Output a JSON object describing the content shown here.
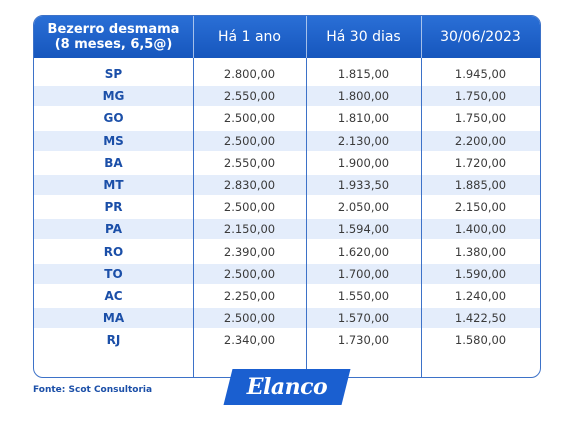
{
  "table": {
    "header": [
      [
        "Bezerro desmama",
        "(8 meses, 6,5@)"
      ],
      "Há 1 ano",
      "Há 30 dias",
      "30/06/2023"
    ],
    "rows": [
      [
        "SP",
        "2.800,00",
        "1.815,00",
        "1.945,00"
      ],
      [
        "MG",
        "2.550,00",
        "1.800,00",
        "1.750,00"
      ],
      [
        "GO",
        "2.500,00",
        "1.810,00",
        "1.750,00"
      ],
      [
        "MS",
        "2.500,00",
        "2.130,00",
        "2.200,00"
      ],
      [
        "BA",
        "2.550,00",
        "1.900,00",
        "1.720,00"
      ],
      [
        "MT",
        "2.830,00",
        "1.933,50",
        "1.885,00"
      ],
      [
        "PR",
        "2.500,00",
        "2.050,00",
        "2.150,00"
      ],
      [
        "PA",
        "2.150,00",
        "1.594,00",
        "1.400,00"
      ],
      [
        "RO",
        "2.390,00",
        "1.620,00",
        "1.380,00"
      ],
      [
        "TO",
        "2.500,00",
        "1.700,00",
        "1.590,00"
      ],
      [
        "AC",
        "2.250,00",
        "1.550,00",
        "1.240,00"
      ],
      [
        "MA",
        "2.500,00",
        "1.570,00",
        "1.422,50"
      ],
      [
        "RJ",
        "2.340,00",
        "1.730,00",
        "1.580,00"
      ]
    ]
  },
  "footer": {
    "source": "Fonte: Scot Consultoria",
    "logo": "Elanco"
  }
}
